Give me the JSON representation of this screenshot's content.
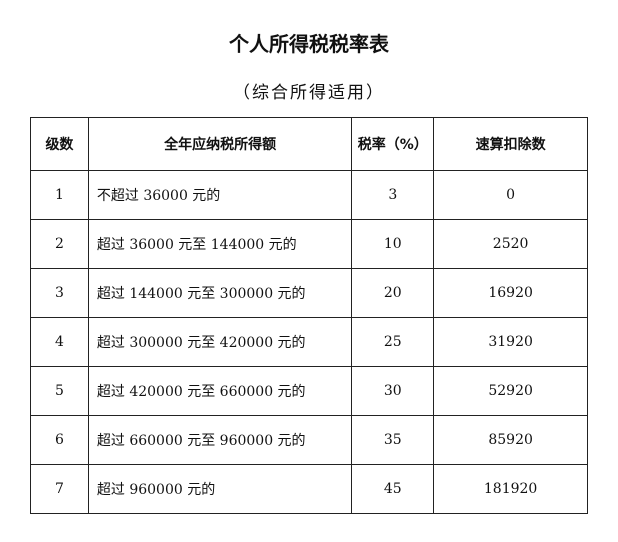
{
  "title": "个人所得税税率表",
  "subtitle": "（综合所得适用）",
  "table": {
    "headers": [
      "级数",
      "全年应纳税所得额",
      "税率（%）",
      "速算扣除数"
    ],
    "rows": [
      [
        "1",
        "不超过 36000 元的",
        "3",
        "0"
      ],
      [
        "2",
        "超过 36000 元至 144000 元的",
        "10",
        "2520"
      ],
      [
        "3",
        "超过 144000 元至 300000 元的",
        "20",
        "16920"
      ],
      [
        "4",
        "超过 300000 元至 420000 元的",
        "25",
        "31920"
      ],
      [
        "5",
        "超过 420000 元至 660000 元的",
        "30",
        "52920"
      ],
      [
        "6",
        "超过 660000 元至 960000 元的",
        "35",
        "85920"
      ],
      [
        "7",
        "超过 960000 元的",
        "45",
        "181920"
      ]
    ]
  }
}
